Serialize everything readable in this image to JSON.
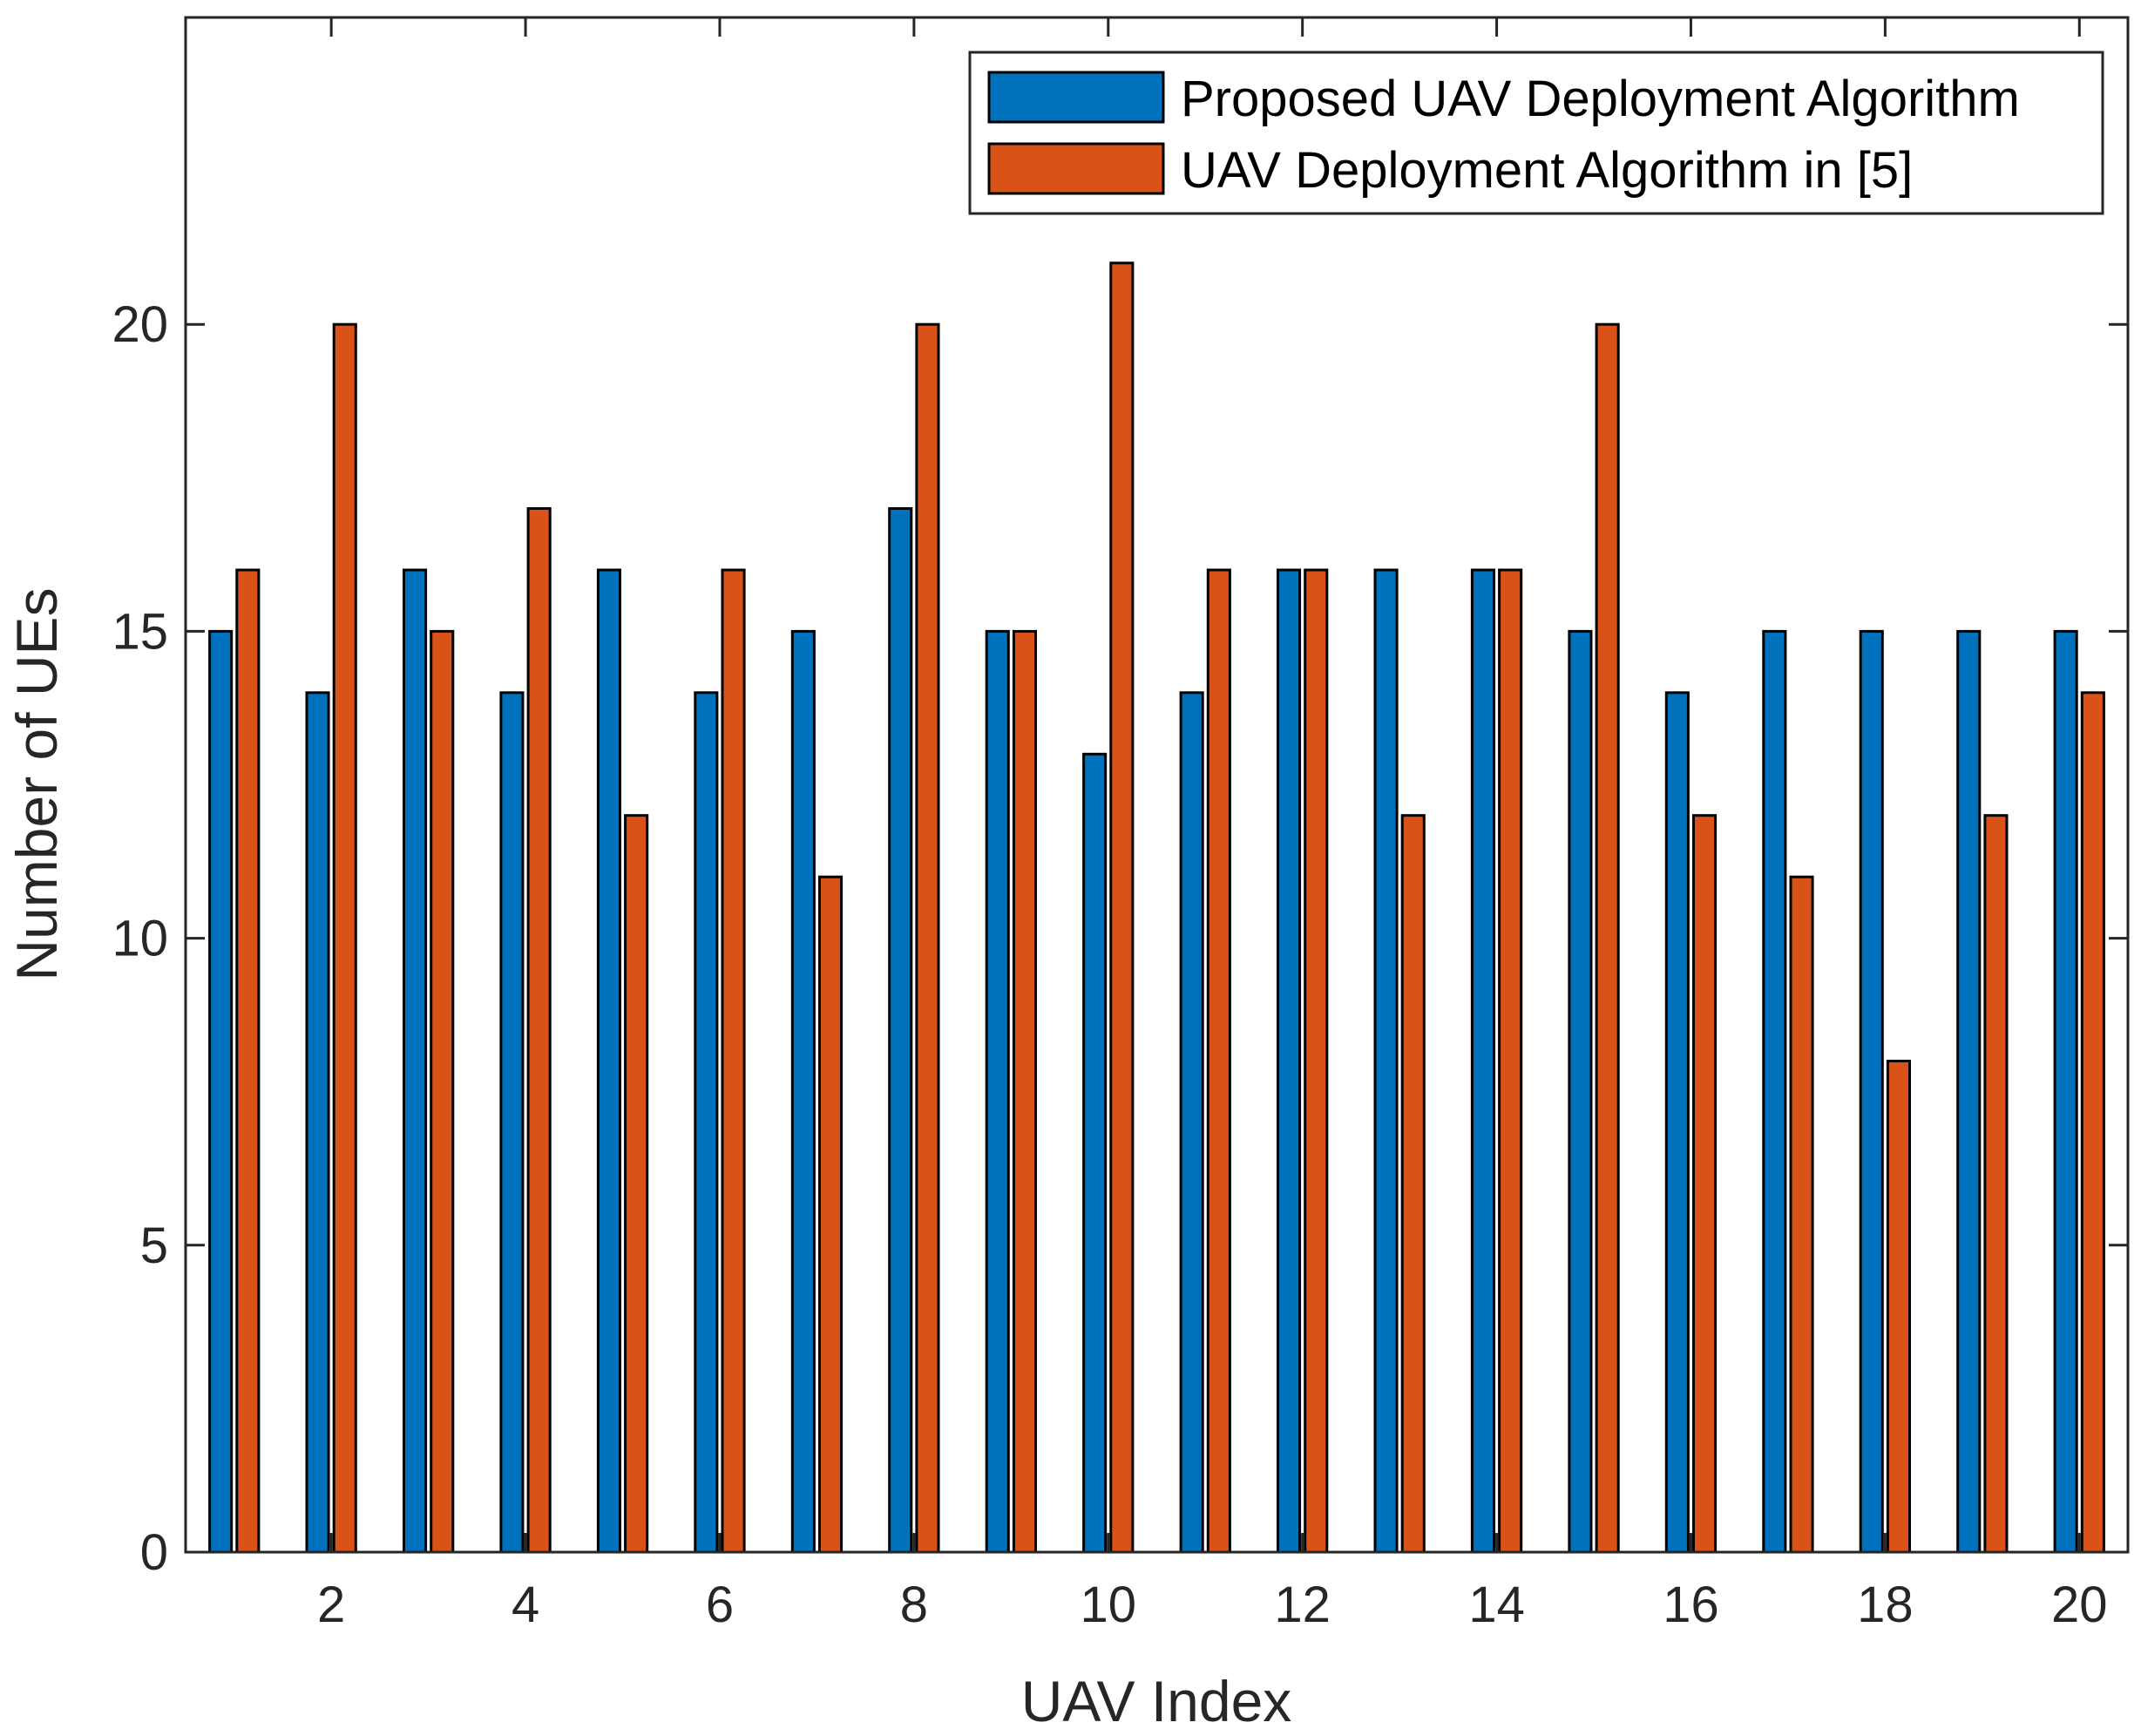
{
  "chart_data": {
    "type": "bar",
    "title": "",
    "xlabel": "UAV Index",
    "ylabel": "Number of UEs",
    "categories": [
      1,
      2,
      3,
      4,
      5,
      6,
      7,
      8,
      9,
      10,
      11,
      12,
      13,
      14,
      15,
      16,
      17,
      18,
      19,
      20
    ],
    "xticks": [
      "2",
      "4",
      "6",
      "8",
      "10",
      "12",
      "14",
      "16",
      "18",
      "20"
    ],
    "yticks": [
      "0",
      "5",
      "10",
      "15",
      "20"
    ],
    "ylim": [
      0,
      25
    ],
    "xlim": [
      0.5,
      20.5
    ],
    "grid": false,
    "legend_position": "top-right",
    "series": [
      {
        "name": "Proposed UAV Deployment Algorithm",
        "color": "#0072BD",
        "values": [
          15,
          14,
          16,
          14,
          16,
          14,
          15,
          17,
          15,
          13,
          14,
          16,
          16,
          16,
          15,
          14,
          15,
          15,
          15,
          15
        ]
      },
      {
        "name": "UAV Deployment Algorithm in [5]",
        "color": "#D95319",
        "values": [
          16,
          20,
          15,
          17,
          12,
          16,
          11,
          20,
          15,
          21,
          16,
          16,
          12,
          16,
          20,
          12,
          11,
          8,
          12,
          14
        ]
      }
    ]
  }
}
